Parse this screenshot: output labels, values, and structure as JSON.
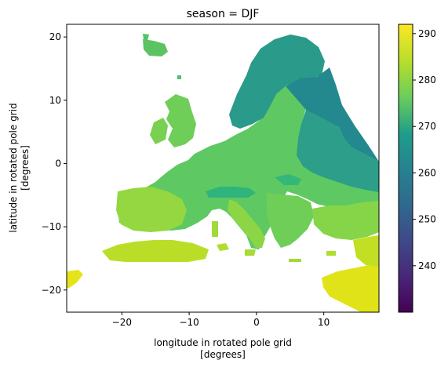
{
  "figure": {
    "title": "season = DJF",
    "xlabel_line1": "longitude in rotated pole grid",
    "xlabel_line2": "[degrees]",
    "ylabel_line1": "latitude in rotated pole grid",
    "ylabel_line2": "[degrees]"
  },
  "chart_data": {
    "type": "heatmap",
    "title": "season = DJF",
    "xlabel": "longitude in rotated pole grid [degrees]",
    "ylabel": "latitude in rotated pole grid [degrees]",
    "xlim": [
      -28.2,
      18.2
    ],
    "ylim": [
      -23.5,
      22.0
    ],
    "xticks": [
      -20,
      -10,
      0,
      10
    ],
    "yticks": [
      -20,
      -10,
      0,
      10,
      20
    ],
    "xtick_labels": [
      "−20",
      "−10",
      "0",
      "10"
    ],
    "ytick_labels": [
      "−20",
      "−10",
      "0",
      "10",
      "20"
    ],
    "colorbar": {
      "colormap": "viridis",
      "range": [
        230,
        292
      ],
      "ticks": [
        240,
        250,
        260,
        270,
        280,
        290
      ],
      "tick_labels": [
        "240",
        "250",
        "260",
        "270",
        "280",
        "290"
      ]
    },
    "value_regions": [
      {
        "region": "Scandinavia and Baltic region",
        "approx_value": 263
      },
      {
        "region": "Eastern Europe",
        "approx_value": 266
      },
      {
        "region": "Central Europe",
        "approx_value": 273
      },
      {
        "region": "Iberian Peninsula",
        "approx_value": 280
      },
      {
        "region": "North Africa coast",
        "approx_value": 284
      },
      {
        "region": "Southwest edge (Atlantic coast of Africa)",
        "approx_value": 290
      },
      {
        "region": "Southeast (Middle East)",
        "approx_value": 286
      }
    ],
    "grid": false,
    "background_color": "#ffffff"
  }
}
